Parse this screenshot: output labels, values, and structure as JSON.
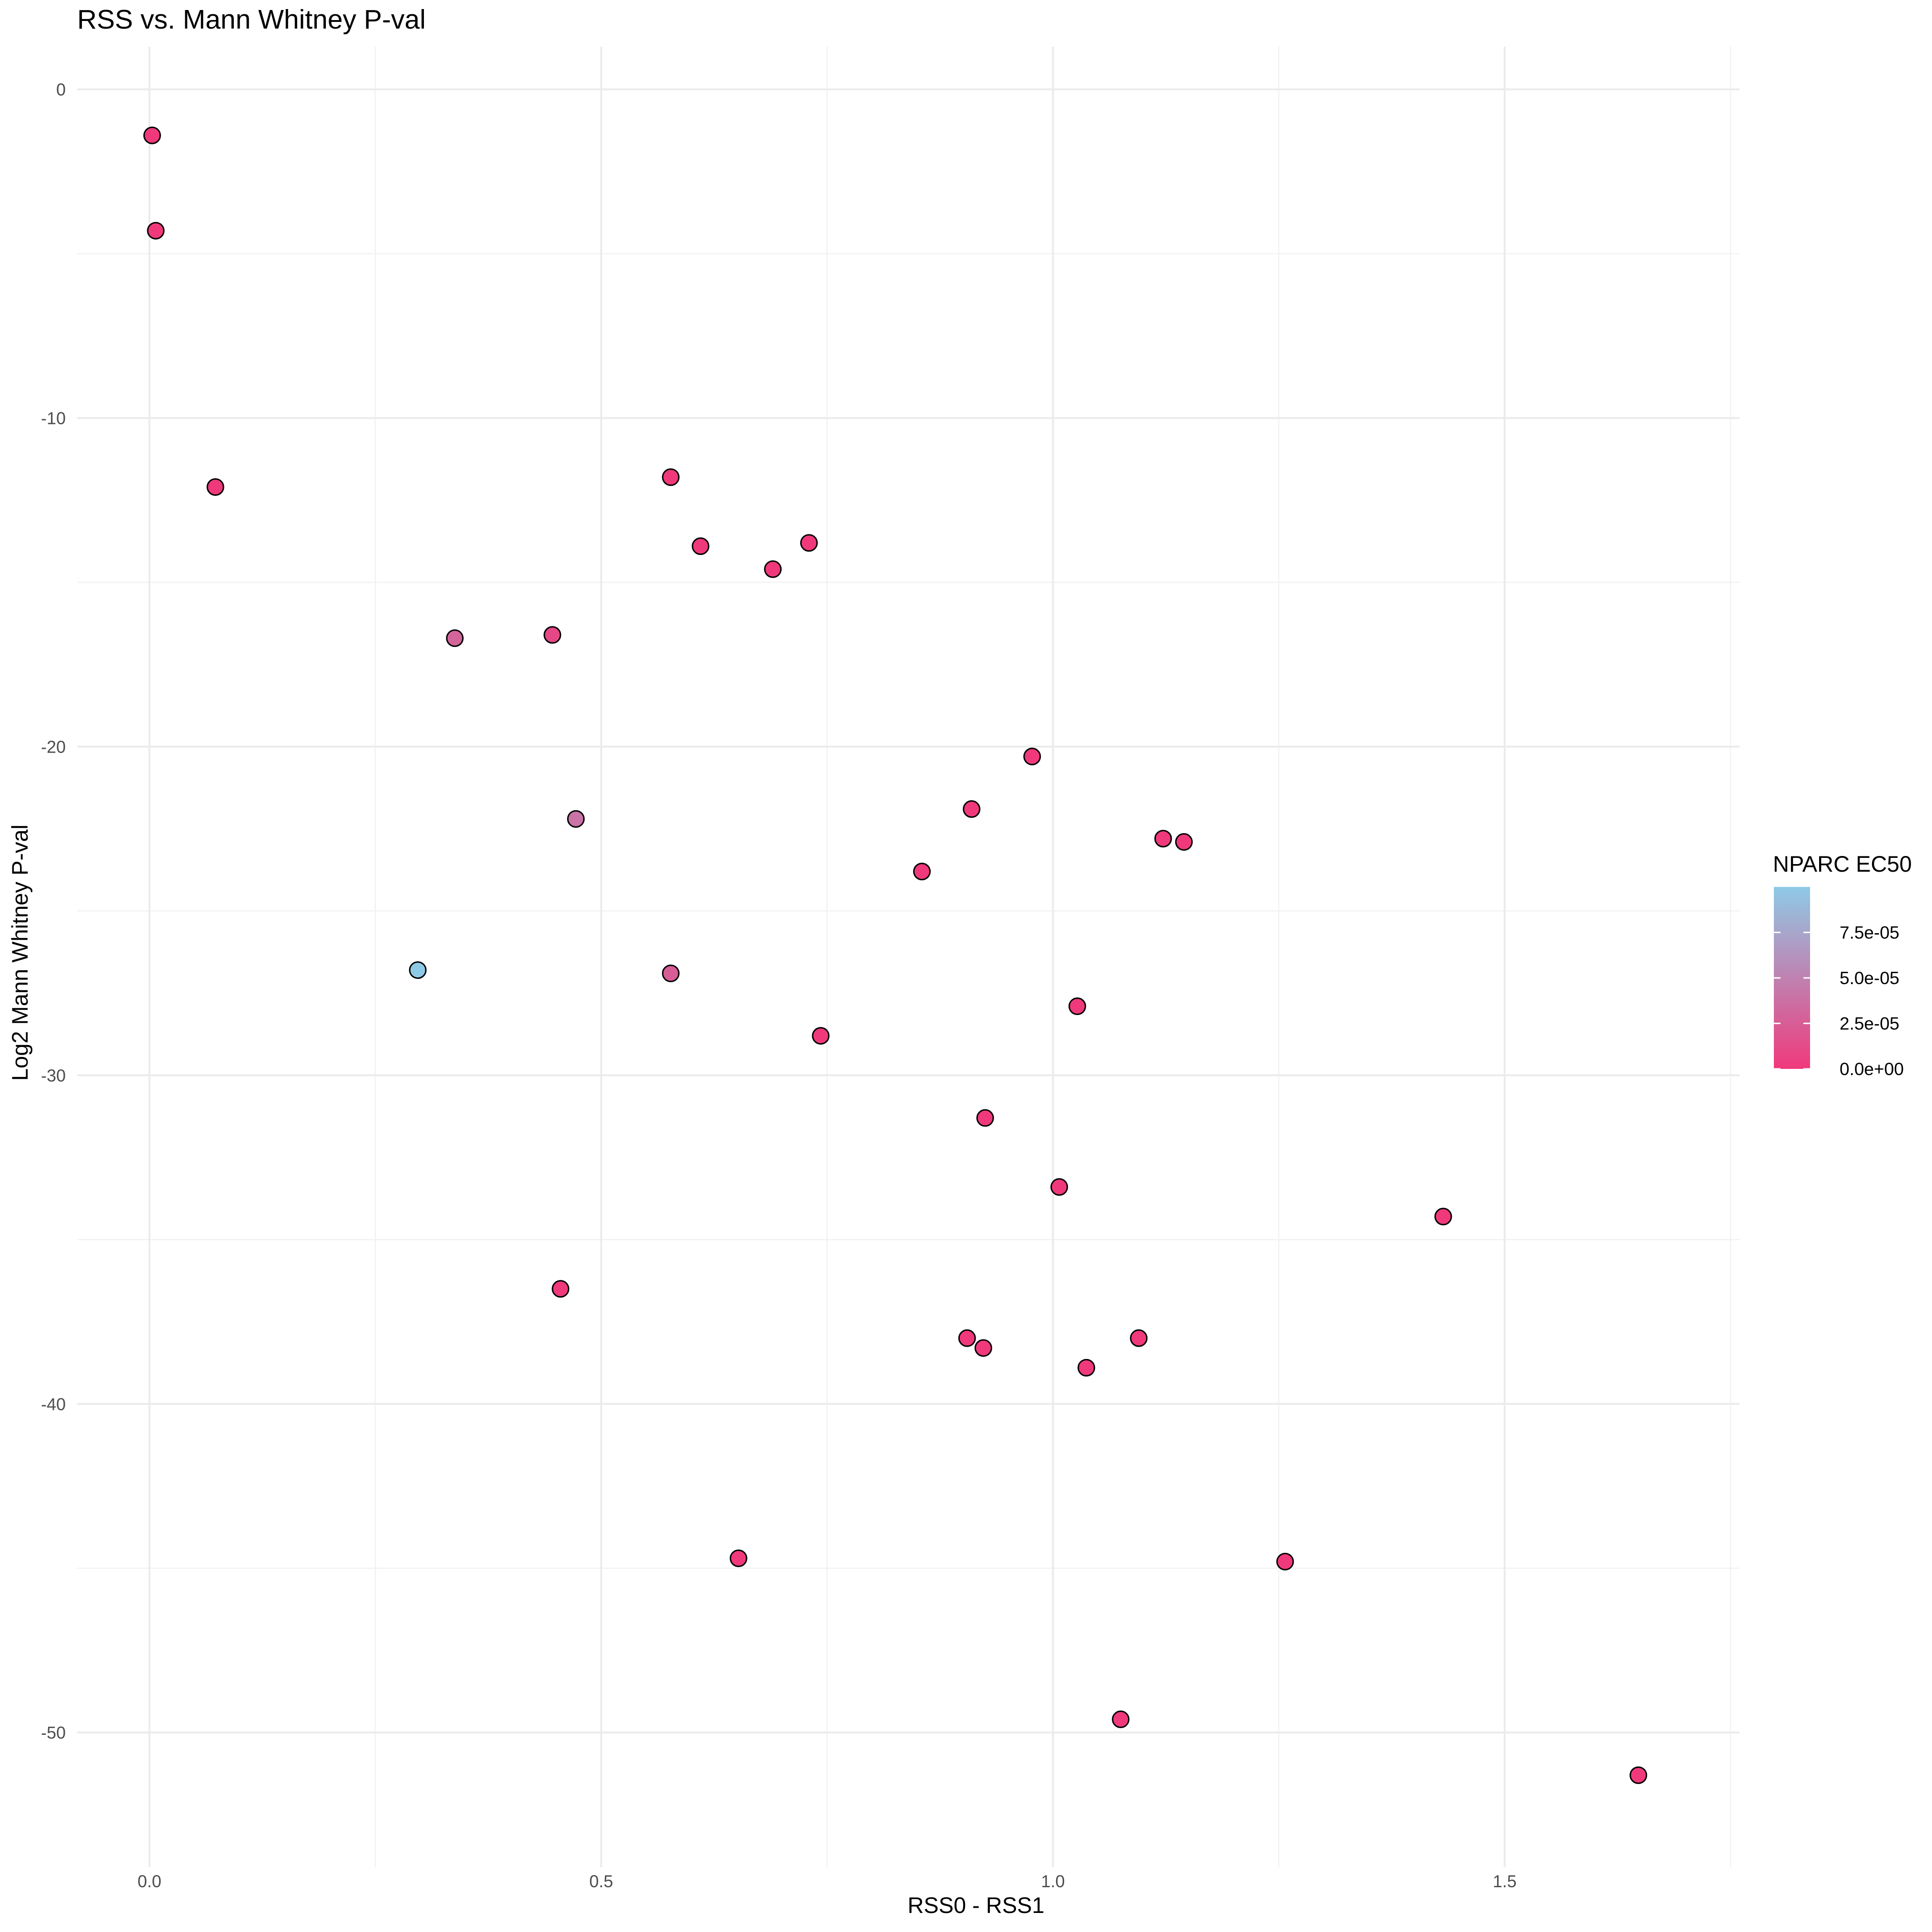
{
  "chart_data": {
    "type": "scatter",
    "title": "RSS vs. Mann Whitney P-val",
    "xlabel": "RSS0 - RSS1",
    "ylabel": "Log2 Mann Whitney P-val",
    "xlim": [
      -0.08,
      1.76
    ],
    "ylim": [
      -54.1,
      1.3
    ],
    "x_ticks": [
      0.0,
      0.5,
      1.0,
      1.5
    ],
    "x_tick_labels": [
      "0.0",
      "0.5",
      "1.0",
      "1.5"
    ],
    "y_ticks": [
      0,
      -10,
      -20,
      -30,
      -40,
      -50
    ],
    "y_tick_labels": [
      "0",
      "-10",
      "-20",
      "-30",
      "-40",
      "-50"
    ],
    "grid": true,
    "legend": {
      "title": "NPARC EC50",
      "placement": "right",
      "type": "colorbar",
      "range": [
        0,
        0.0001
      ],
      "low_color": "#f0397b",
      "high_color": "#8ecae6",
      "ticks": [
        0,
        2.5e-05,
        5e-05,
        7.5e-05
      ],
      "tick_labels": [
        "0.0e+00",
        "2.5e-05",
        "5.0e-05",
        "7.5e-05"
      ]
    },
    "point_style": {
      "outline": "#000000"
    },
    "points": [
      {
        "x": 0.003,
        "y": -1.4,
        "ec50": 0.0
      },
      {
        "x": 0.007,
        "y": -4.3,
        "ec50": 0.0
      },
      {
        "x": 0.073,
        "y": -12.1,
        "ec50": 0.0
      },
      {
        "x": 0.577,
        "y": -11.8,
        "ec50": 0.0
      },
      {
        "x": 0.61,
        "y": -13.9,
        "ec50": 0.0
      },
      {
        "x": 0.73,
        "y": -13.8,
        "ec50": 0.0
      },
      {
        "x": 0.69,
        "y": -14.6,
        "ec50": 0.0
      },
      {
        "x": 0.338,
        "y": -16.7,
        "ec50": 3e-05
      },
      {
        "x": 0.446,
        "y": -16.6,
        "ec50": 1e-05
      },
      {
        "x": 0.977,
        "y": -20.3,
        "ec50": 0.0
      },
      {
        "x": 0.91,
        "y": -21.9,
        "ec50": 0.0
      },
      {
        "x": 0.472,
        "y": -22.2,
        "ec50": 4e-05
      },
      {
        "x": 1.122,
        "y": -22.8,
        "ec50": 0.0
      },
      {
        "x": 1.145,
        "y": -22.9,
        "ec50": 0.0
      },
      {
        "x": 0.855,
        "y": -23.8,
        "ec50": 0.0
      },
      {
        "x": 0.297,
        "y": -26.8,
        "ec50": 0.0001
      },
      {
        "x": 0.577,
        "y": -26.9,
        "ec50": 2.5e-05
      },
      {
        "x": 1.027,
        "y": -27.9,
        "ec50": 0.0
      },
      {
        "x": 0.743,
        "y": -28.8,
        "ec50": 0.0
      },
      {
        "x": 0.925,
        "y": -31.3,
        "ec50": 0.0
      },
      {
        "x": 1.007,
        "y": -33.4,
        "ec50": 0.0
      },
      {
        "x": 1.432,
        "y": -34.3,
        "ec50": 0.0
      },
      {
        "x": 0.455,
        "y": -36.5,
        "ec50": 0.0
      },
      {
        "x": 0.905,
        "y": -38.0,
        "ec50": 0.0
      },
      {
        "x": 1.095,
        "y": -38.0,
        "ec50": 0.0
      },
      {
        "x": 0.923,
        "y": -38.3,
        "ec50": 0.0
      },
      {
        "x": 1.037,
        "y": -38.9,
        "ec50": 0.0
      },
      {
        "x": 0.652,
        "y": -44.7,
        "ec50": 0.0
      },
      {
        "x": 1.257,
        "y": -44.8,
        "ec50": 0.0
      },
      {
        "x": 1.075,
        "y": -49.6,
        "ec50": 0.0
      },
      {
        "x": 1.648,
        "y": -51.3,
        "ec50": 0.0
      }
    ]
  }
}
